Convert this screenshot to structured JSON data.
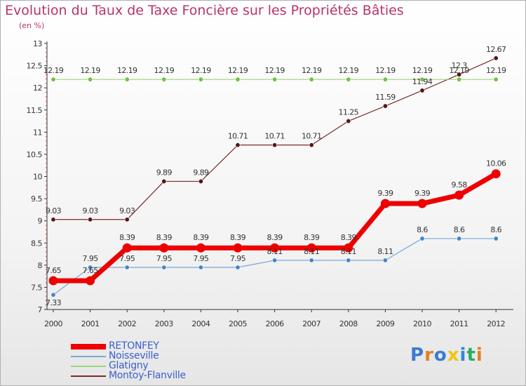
{
  "chart_data": {
    "type": "line",
    "title": "Evolution du Taux de Taxe Foncière sur les Propriétés Bâties",
    "subtitle": "(en %)",
    "xlabel": "",
    "ylabel": "(en %)",
    "categories": [
      "2000",
      "2001",
      "2002",
      "2003",
      "2004",
      "2005",
      "2006",
      "2007",
      "2008",
      "2009",
      "2010",
      "2011",
      "2012"
    ],
    "y_ticks": [
      "7",
      "7.5",
      "8",
      "8.5",
      "9",
      "9.5",
      "10",
      "10.5",
      "11",
      "11.5",
      "12",
      "12.5",
      "13"
    ],
    "ylim": [
      7,
      13
    ],
    "grid": "horizontal-right-ticks",
    "legend_position": "bottom-left",
    "series": [
      {
        "name": "Montoy-Flanville",
        "color": "#7a2a2a",
        "values": [
          9.03,
          9.03,
          9.03,
          9.89,
          9.89,
          10.71,
          10.71,
          10.71,
          11.25,
          11.59,
          11.94,
          12.3,
          12.67
        ],
        "labels": [
          "9.03",
          "9.03",
          "9.03",
          "9.89",
          "9.89",
          "10.71",
          "10.71",
          "10.71",
          "11.25",
          "11.59",
          "11.94",
          "12.3",
          "12.67"
        ]
      },
      {
        "name": "Glatigny",
        "color": "#9bd57a",
        "values": [
          12.19,
          12.19,
          12.19,
          12.19,
          12.19,
          12.19,
          12.19,
          12.19,
          12.19,
          12.19,
          12.19,
          12.19,
          12.19
        ],
        "labels": [
          "12.19",
          "12.19",
          "12.19",
          "12.19",
          "12.19",
          "12.19",
          "12.19",
          "12.19",
          "12.19",
          "12.19",
          "12.19",
          "12.19",
          "12.19"
        ]
      },
      {
        "name": "Noisseville",
        "color": "#7aa7d4",
        "values": [
          7.33,
          7.95,
          7.95,
          7.95,
          7.95,
          7.95,
          8.11,
          8.11,
          8.11,
          8.11,
          8.6,
          8.6,
          8.6
        ],
        "labels": [
          "7.33",
          "7.95",
          "7.95",
          "7.95",
          "7.95",
          "7.95",
          "8.11",
          "8.11",
          "8.11",
          "8.11",
          "8.6",
          "8.6",
          "8.6"
        ]
      },
      {
        "name": "RETONFEY",
        "color": "#ee0000",
        "values": [
          7.65,
          7.65,
          8.39,
          8.39,
          8.39,
          8.39,
          8.39,
          8.39,
          8.39,
          9.39,
          9.39,
          9.58,
          10.06
        ],
        "labels": [
          "7.65",
          "7.65",
          "8.39",
          "8.39",
          "8.39",
          "8.39",
          "8.39",
          "8.39",
          "8.39",
          "9.39",
          "9.39",
          "9.58",
          "10.06"
        ]
      }
    ],
    "legend_order": [
      "RETONFEY",
      "Noisseville",
      "Glatigny",
      "Montoy-Flanville"
    ]
  },
  "brand": {
    "text": "Proxiti",
    "letters": [
      "P",
      "r",
      "o",
      "x",
      "i",
      "t",
      "i"
    ],
    "letter_colors": [
      "#3a7bd5",
      "#e67e22",
      "#3a7bd5",
      "#f1c40f",
      "#2e86de",
      "#27ae60",
      "#e67e22"
    ]
  }
}
